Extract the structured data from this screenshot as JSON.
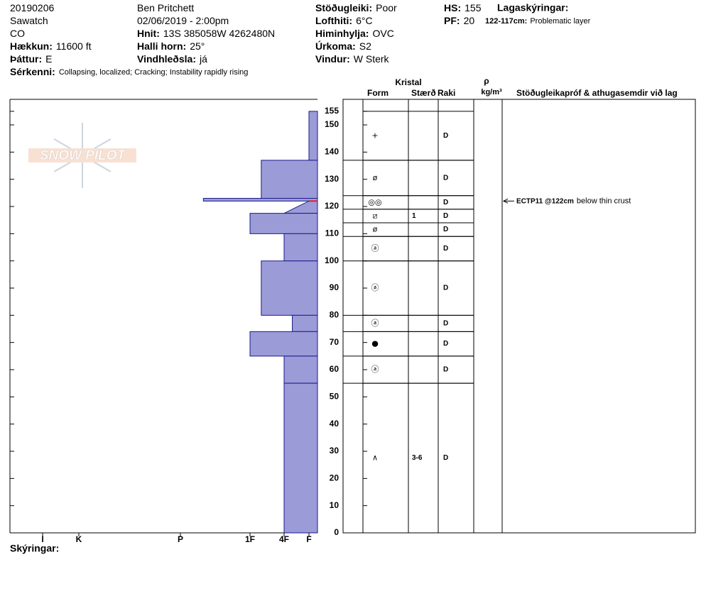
{
  "header": {
    "columns": [
      [
        {
          "value": "20190206"
        },
        {
          "value": "Sawatch"
        },
        {
          "value": "CO"
        },
        {
          "label": "Hækkun:",
          "value": "11600 ft"
        },
        {
          "label": "Þáttur:",
          "value": "E"
        }
      ],
      [
        {
          "value": "Ben Pritchett"
        },
        {
          "value": "02/06/2019 - 2:00pm"
        },
        {
          "label": "Hnit:",
          "value": "13S 385058W 4262480N"
        },
        {
          "label": "Halli horn:",
          "value": "25°"
        },
        {
          "label": "Vindhleðsla:",
          "value": "já"
        }
      ],
      [
        {
          "label": "Stöðugleiki:",
          "value": "Poor"
        },
        {
          "label": "Lofthiti:",
          "value": "6°C"
        },
        {
          "label": "Himinhylja:",
          "value": "OVC"
        },
        {
          "label": "Úrkoma:",
          "value": "S2"
        },
        {
          "label": "Vindur:",
          "value": "W Sterk"
        }
      ],
      [
        {
          "label": "HS:",
          "value": "155"
        },
        {
          "label": "PF:",
          "value": "20"
        }
      ]
    ],
    "remarks": {
      "label": "Sérkenni:",
      "value": "Collapsing, localized;  Cracking;  Instability rapidly rising"
    },
    "legend": {
      "title": "Lagaskýringar:",
      "range": "122-117cm:",
      "text": "Problematic layer"
    }
  },
  "chart_data": {
    "type": "snow-profile",
    "logo": "SNOW PILOT",
    "ylim": [
      0,
      159.4
    ],
    "yticks": [
      0,
      10,
      20,
      30,
      40,
      50,
      60,
      70,
      80,
      90,
      100,
      110,
      120,
      130,
      140,
      150,
      155
    ],
    "xticks": [
      {
        "value": 1,
        "label": "F"
      },
      {
        "value": 2,
        "label": "4F"
      },
      {
        "value": 3,
        "label": "1F"
      },
      {
        "value": 4,
        "label": "P"
      },
      {
        "value": 5,
        "label": "K"
      },
      {
        "value": 6,
        "label": "I"
      }
    ],
    "color": "#9b9bd8",
    "edge_color": "#1a1a8c",
    "problem_color": "#e0202a",
    "problematic_layer": {
      "top": 122,
      "bottom": 117
    },
    "layers": [
      {
        "top": 155,
        "bottom": 137,
        "hardness": 1
      },
      {
        "top": 137,
        "bottom": 123,
        "hardness": 2.67
      },
      {
        "top": 123,
        "bottom": 122,
        "hardness": 3.67
      },
      {
        "top": 122,
        "bottom": 117.5,
        "hardness": 1,
        "hardness_bottom": 2
      },
      {
        "top": 117.5,
        "bottom": 110,
        "hardness": 3
      },
      {
        "top": 110,
        "bottom": 100,
        "hardness": 2
      },
      {
        "top": 100,
        "bottom": 80,
        "hardness": 2.67
      },
      {
        "top": 80,
        "bottom": 74,
        "hardness": 1.67
      },
      {
        "top": 74,
        "bottom": 65,
        "hardness": 3
      },
      {
        "top": 65,
        "bottom": 55,
        "hardness": 2
      },
      {
        "top": 55,
        "bottom": 0,
        "hardness": 2
      }
    ],
    "table": {
      "headers": {
        "crystal": "Kristal",
        "form": "Form",
        "size": "Stærð",
        "moisture": "Raki",
        "density_symbol": "ρ",
        "density_unit": "kg/m³",
        "comments": "Stöðugleikapróf & athugasemdir við lag"
      },
      "rows": [
        {
          "top": 155,
          "bottom": 137,
          "form": "+",
          "moisture": "D"
        },
        {
          "top": 137,
          "bottom": 124,
          "form": "ø",
          "moisture": "D"
        },
        {
          "top": 124,
          "bottom": 119,
          "form": "◎◎",
          "moisture": "D"
        },
        {
          "top": 119,
          "bottom": 114,
          "form": "⧄",
          "size": "1",
          "moisture": "D"
        },
        {
          "top": 114,
          "bottom": 109,
          "form": "ø",
          "moisture": "D"
        },
        {
          "top": 109,
          "bottom": 100,
          "form": "ⓐ",
          "moisture": "D"
        },
        {
          "top": 100,
          "bottom": 80,
          "form": "ⓐ",
          "moisture": "D"
        },
        {
          "top": 80,
          "bottom": 74,
          "form": "ⓐ",
          "moisture": "D"
        },
        {
          "top": 74,
          "bottom": 65,
          "form": "●",
          "moisture": "D"
        },
        {
          "top": 65,
          "bottom": 55,
          "form": "ⓐ",
          "moisture": "D"
        },
        {
          "top": 55,
          "bottom": 0,
          "form": "∧",
          "size": "3-6",
          "moisture": "D"
        }
      ]
    },
    "tests": [
      {
        "depth": 122,
        "label": "ECTP11 @122cm",
        "comment": "below thin crust"
      }
    ],
    "footer": "Skýringar:"
  }
}
